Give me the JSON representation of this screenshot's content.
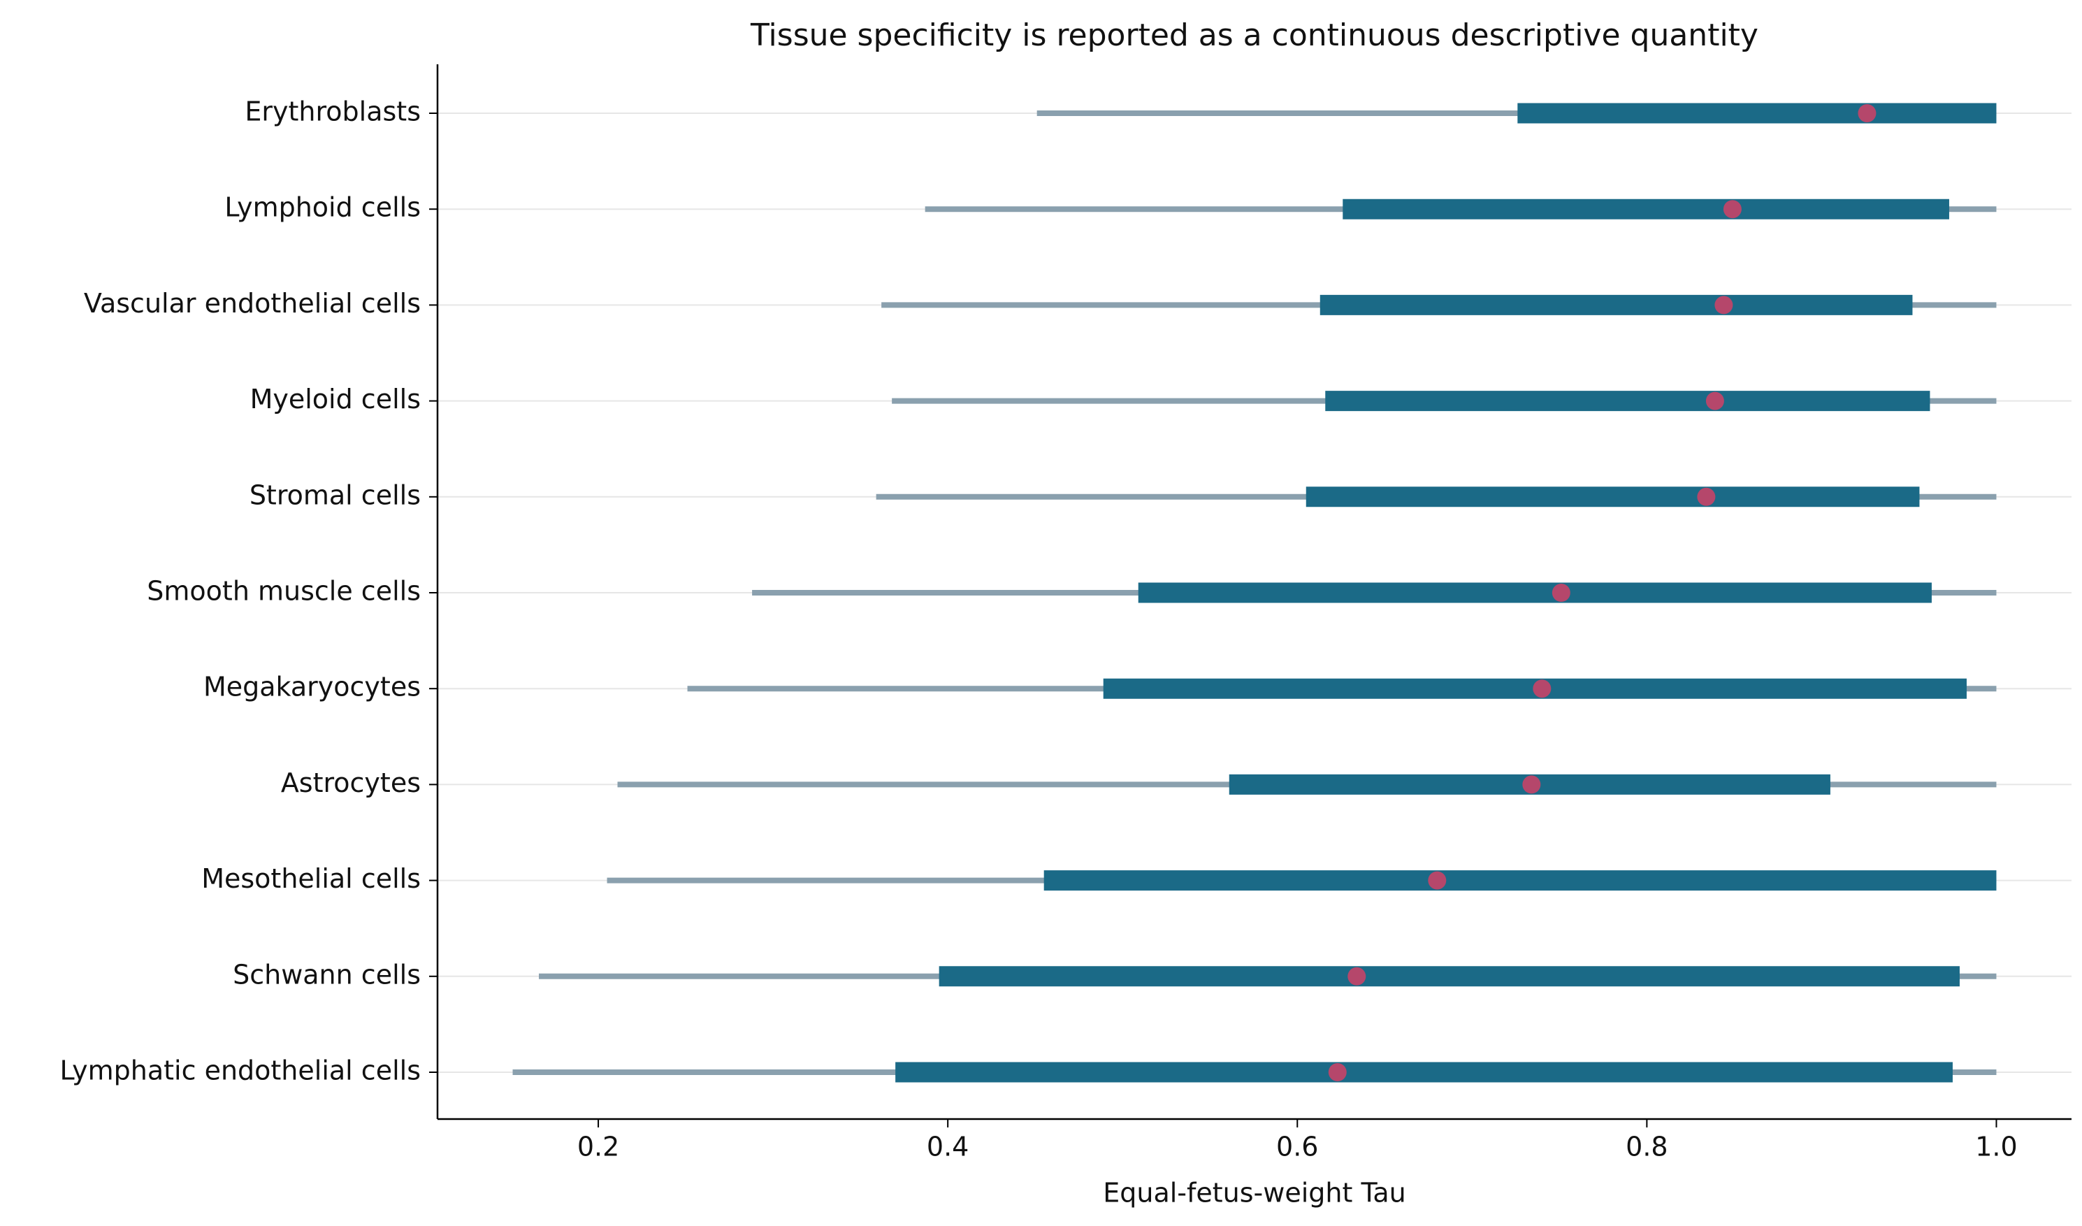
{
  "chart_data": {
    "type": "interval",
    "title": "Tissue specificity is reported as a continuous descriptive quantity",
    "x_label": "Equal-fetus-weight Tau",
    "categories": [
      "Erythroblasts",
      "Lymphoid cells",
      "Vascular endothelial cells",
      "Myeloid cells",
      "Stromal cells",
      "Smooth muscle cells",
      "Megakaryocytes",
      "Astrocytes",
      "Mesothelial cells",
      "Schwann cells",
      "Lymphatic endothelial cells"
    ],
    "whisker_low": [
      0.451,
      0.387,
      0.362,
      0.368,
      0.359,
      0.288,
      0.251,
      0.211,
      0.205,
      0.166,
      0.151
    ],
    "box_low": [
      0.726,
      0.626,
      0.613,
      0.616,
      0.605,
      0.509,
      0.489,
      0.561,
      0.455,
      0.395,
      0.37
    ],
    "point": [
      0.926,
      0.849,
      0.844,
      0.839,
      0.834,
      0.751,
      0.74,
      0.734,
      0.68,
      0.634,
      0.623
    ],
    "box_high": [
      1.0,
      0.973,
      0.952,
      0.962,
      0.956,
      0.963,
      0.983,
      0.905,
      1.0,
      0.979,
      0.975
    ],
    "whisker_high": [
      1.0,
      1.0,
      1.0,
      1.0,
      1.0,
      1.0,
      1.0,
      1.0,
      1.0,
      1.0,
      1.0
    ],
    "whisker_color": "#8aa0ae",
    "box_color": "#1b6a87",
    "point_color": "#b5476b",
    "xlim": [
      0.108,
      1.043
    ],
    "xticks": [
      0.2,
      0.4,
      0.6,
      0.8,
      {
        "value": 1.0,
        "label": "1.0"
      }
    ],
    "grid": true
  }
}
